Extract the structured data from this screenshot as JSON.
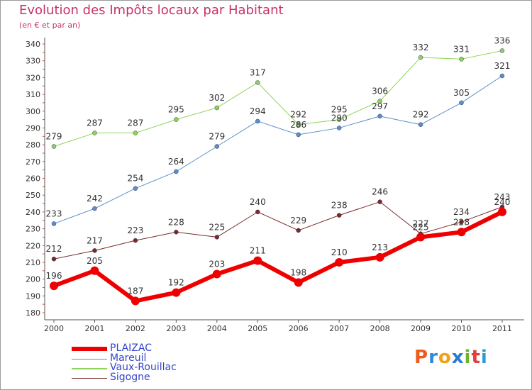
{
  "title": "Evolution des Impôts locaux par Habitant",
  "subtitle": "(en € et par an)",
  "logo": {
    "letters": [
      "P",
      "r",
      "o",
      "x",
      "i",
      "t",
      "i"
    ],
    "colors": [
      "#ee5b1e",
      "#2e8ad8",
      "#f4a014",
      "#2a7ad0",
      "#6fb22c",
      "#e43c3c",
      "#2a9ad8"
    ]
  },
  "chart_data": {
    "type": "line",
    "title": "Evolution des Impôts locaux par Habitant",
    "subtitle": "(en € et par an)",
    "xlabel": "",
    "ylabel": "",
    "ylim": [
      180,
      340
    ],
    "yticks": [
      180,
      190,
      200,
      210,
      220,
      230,
      240,
      250,
      260,
      270,
      280,
      290,
      300,
      310,
      320,
      330,
      340
    ],
    "grid": false,
    "legend": "bottom-left",
    "x": [
      "2000",
      "2001",
      "2002",
      "2003",
      "2004",
      "2005",
      "2006",
      "2007",
      "2008",
      "2009",
      "2010",
      "2011"
    ],
    "series": [
      {
        "name": "PLAIZAC",
        "color": "#ee0000",
        "values": [
          196,
          205,
          187,
          192,
          203,
          211,
          198,
          210,
          213,
          225,
          228,
          240
        ]
      },
      {
        "name": "Mareuil",
        "color": "#5b8fc9",
        "values": [
          233,
          242,
          254,
          264,
          279,
          294,
          286,
          290,
          297,
          292,
          305,
          321
        ]
      },
      {
        "name": "Vaux-Rouillac",
        "color": "#8ed35b",
        "values": [
          279,
          287,
          287,
          295,
          302,
          317,
          292,
          295,
          306,
          332,
          331,
          336
        ]
      },
      {
        "name": "Sigogne",
        "color": "#7a2a2a",
        "values": [
          212,
          217,
          223,
          228,
          225,
          240,
          229,
          238,
          246,
          227,
          234,
          243
        ]
      }
    ]
  }
}
